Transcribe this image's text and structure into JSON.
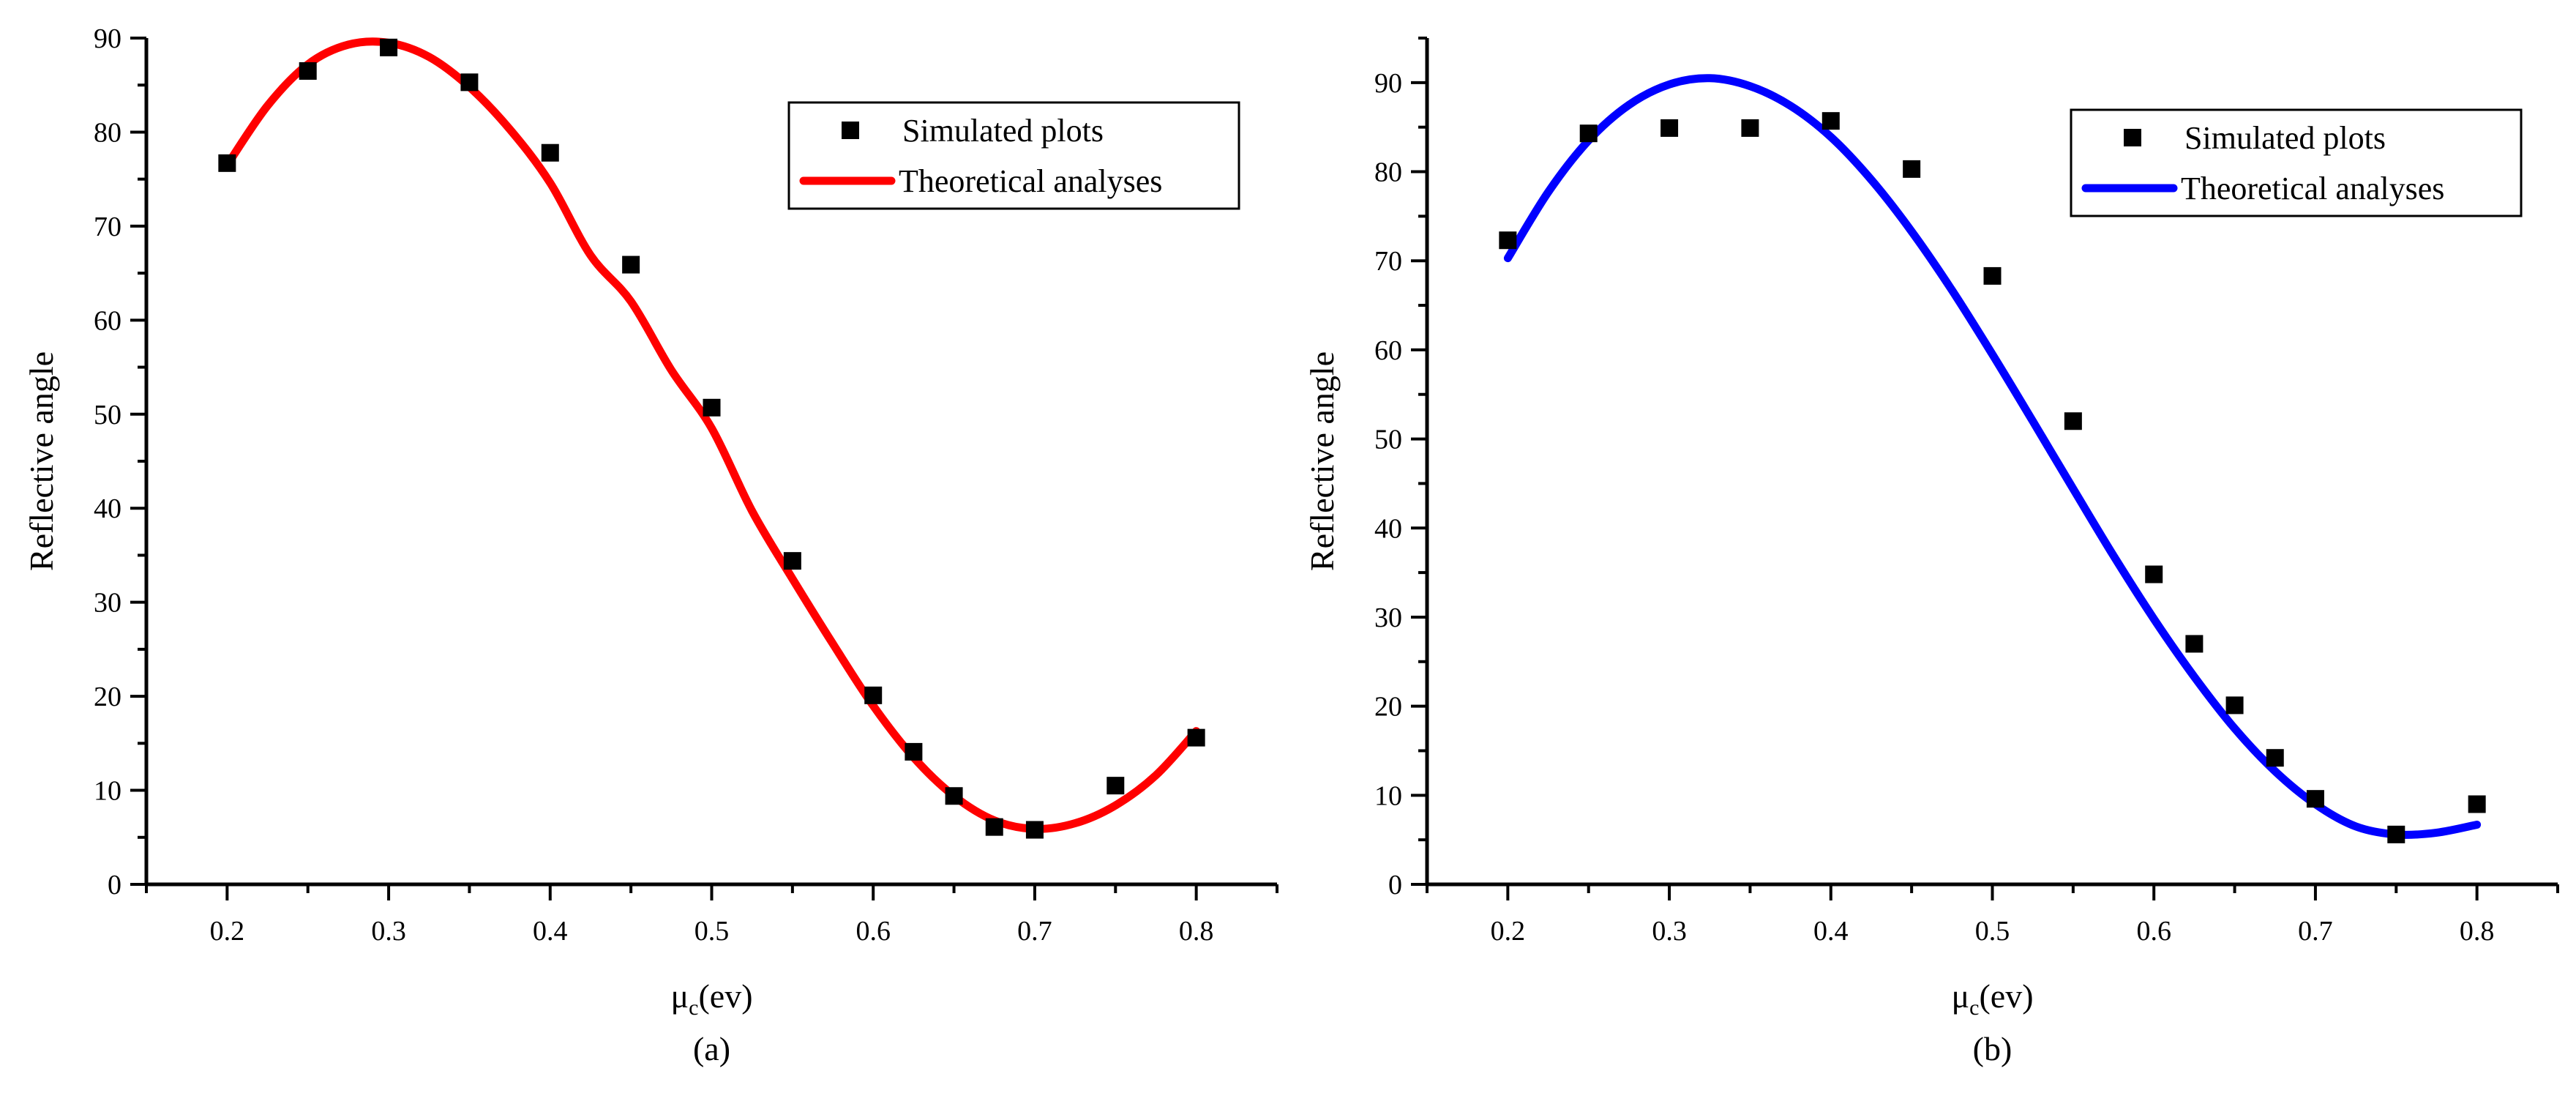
{
  "chart_data": [
    {
      "type": "scatter",
      "panel_label": "(a)",
      "xlabel_main": "μ",
      "xlabel_sub": "c",
      "xlabel_unit": "(ev)",
      "ylabel": "Reflective angle",
      "xlim": [
        0.15,
        0.85
      ],
      "ylim": [
        0,
        90
      ],
      "x_ticks": [
        "0.2",
        "0.3",
        "0.4",
        "0.5",
        "0.6",
        "0.7",
        "0.8"
      ],
      "y_ticks": [
        "0",
        "10",
        "20",
        "30",
        "40",
        "50",
        "60",
        "70",
        "80",
        "90"
      ],
      "grid": false,
      "legend_position": "top-right",
      "legend": [
        "Simulated plots",
        "Theoretical analyses"
      ],
      "series": [
        {
          "name": "Simulated plots",
          "kind": "markers",
          "color": "#000000",
          "x": [
            0.2,
            0.25,
            0.3,
            0.35,
            0.4,
            0.45,
            0.5,
            0.55,
            0.6,
            0.625,
            0.65,
            0.675,
            0.7,
            0.75,
            0.8
          ],
          "y": [
            76.7,
            86.5,
            89.0,
            85.3,
            77.8,
            65.9,
            50.7,
            34.4,
            20.1,
            14.1,
            9.4,
            6.1,
            5.8,
            10.5,
            15.6
          ]
        },
        {
          "name": "Theoretical analyses",
          "kind": "line",
          "color": "#ff0000",
          "x": [
            0.2,
            0.225,
            0.25,
            0.275,
            0.3,
            0.325,
            0.35,
            0.375,
            0.4,
            0.425,
            0.45,
            0.475,
            0.5,
            0.525,
            0.55,
            0.575,
            0.6,
            0.625,
            0.65,
            0.675,
            0.7,
            0.725,
            0.75,
            0.775,
            0.8
          ],
          "y": [
            76.5,
            82.8,
            87.2,
            89.3,
            89.5,
            88.0,
            84.8,
            80.3,
            74.6,
            66.9,
            62.0,
            54.7,
            48.5,
            39.7,
            32.5,
            25.6,
            19.0,
            13.5,
            9.4,
            6.8,
            5.9,
            6.5,
            8.4,
            11.6,
            16.3
          ]
        }
      ]
    },
    {
      "type": "scatter",
      "panel_label": "(b)",
      "xlabel_main": "μ",
      "xlabel_sub": "c",
      "xlabel_unit": "(ev)",
      "ylabel": "Reflective angle",
      "xlim": [
        0.15,
        0.85
      ],
      "ylim": [
        0,
        95
      ],
      "x_ticks": [
        "0.2",
        "0.3",
        "0.4",
        "0.5",
        "0.6",
        "0.7",
        "0.8"
      ],
      "y_ticks": [
        "0",
        "10",
        "20",
        "30",
        "40",
        "50",
        "60",
        "70",
        "80",
        "90"
      ],
      "grid": false,
      "legend_position": "top-right",
      "legend": [
        "Simulated plots",
        "Theoretical analyses"
      ],
      "series": [
        {
          "name": "Simulated plots",
          "kind": "markers",
          "color": "#000000",
          "x": [
            0.2,
            0.25,
            0.3,
            0.35,
            0.4,
            0.45,
            0.5,
            0.55,
            0.6,
            0.625,
            0.65,
            0.675,
            0.7,
            0.75,
            0.8
          ],
          "y": [
            72.3,
            84.3,
            84.9,
            84.9,
            85.7,
            80.3,
            68.3,
            52.0,
            34.8,
            27.0,
            20.1,
            14.2,
            9.6,
            5.6,
            9.0
          ]
        },
        {
          "name": "Theoretical analyses",
          "kind": "line",
          "color": "#0000ff",
          "x": [
            0.2,
            0.225,
            0.25,
            0.275,
            0.3,
            0.325,
            0.35,
            0.375,
            0.4,
            0.425,
            0.45,
            0.475,
            0.5,
            0.525,
            0.55,
            0.575,
            0.6,
            0.625,
            0.65,
            0.675,
            0.7,
            0.725,
            0.75,
            0.775,
            0.8
          ],
          "y": [
            70.3,
            77.7,
            83.5,
            87.5,
            89.8,
            90.5,
            89.6,
            87.4,
            83.9,
            79.1,
            73.3,
            66.7,
            59.5,
            52.0,
            44.4,
            36.9,
            29.8,
            23.3,
            17.5,
            12.7,
            9.0,
            6.5,
            5.6,
            5.8,
            6.7
          ]
        }
      ]
    }
  ]
}
